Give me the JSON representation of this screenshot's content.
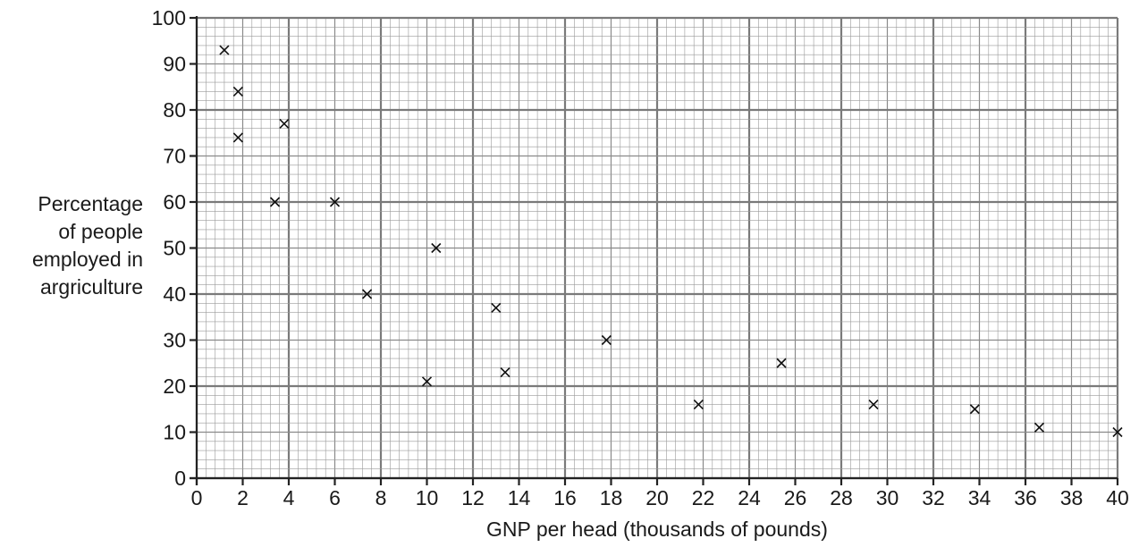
{
  "chart_data": {
    "type": "scatter",
    "title": "",
    "xlabel": "GNP per head (thousands of pounds)",
    "ylabel": [
      "Percentage",
      "of people",
      "employed in",
      "argriculture"
    ],
    "xlim": [
      0,
      40
    ],
    "ylim": [
      0,
      100
    ],
    "x_ticks": [
      "0",
      "2",
      "4",
      "6",
      "8",
      "10",
      "12",
      "14",
      "16",
      "18",
      "20",
      "22",
      "24",
      "26",
      "28",
      "30",
      "32",
      "34",
      "36",
      "38",
      "40"
    ],
    "y_ticks": [
      "0",
      "10",
      "20",
      "30",
      "40",
      "50",
      "60",
      "70",
      "80",
      "90",
      "100"
    ],
    "grid": true,
    "marker": "x",
    "points": [
      {
        "x": 1.2,
        "y": 93
      },
      {
        "x": 1.8,
        "y": 84
      },
      {
        "x": 1.8,
        "y": 74
      },
      {
        "x": 3.8,
        "y": 77
      },
      {
        "x": 3.4,
        "y": 60
      },
      {
        "x": 6.0,
        "y": 60
      },
      {
        "x": 7.4,
        "y": 40
      },
      {
        "x": 10.4,
        "y": 50
      },
      {
        "x": 10.0,
        "y": 21
      },
      {
        "x": 13.0,
        "y": 37
      },
      {
        "x": 13.4,
        "y": 23
      },
      {
        "x": 17.8,
        "y": 30
      },
      {
        "x": 21.8,
        "y": 16
      },
      {
        "x": 25.4,
        "y": 25
      },
      {
        "x": 29.4,
        "y": 16
      },
      {
        "x": 33.8,
        "y": 15
      },
      {
        "x": 36.6,
        "y": 11
      },
      {
        "x": 40.0,
        "y": 10
      }
    ]
  }
}
